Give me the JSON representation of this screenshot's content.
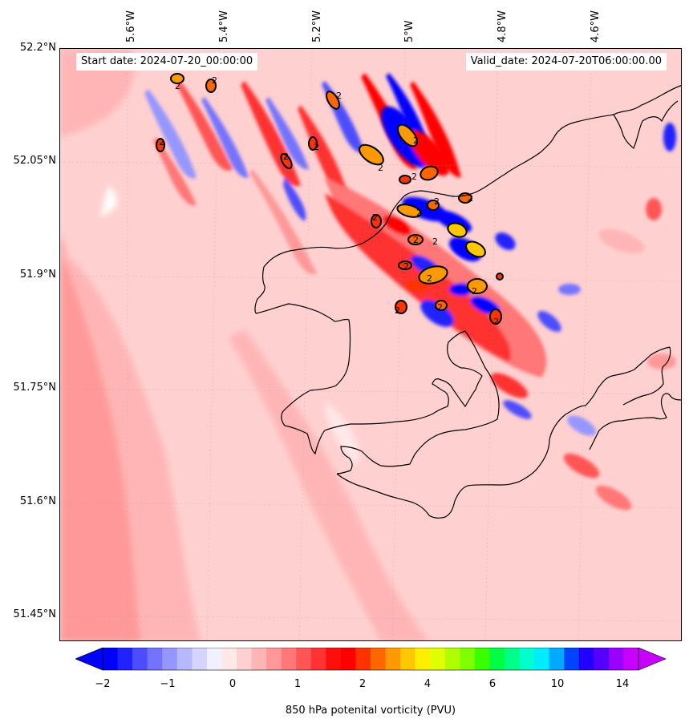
{
  "header": {
    "start_date": "Start date: 2024-07-20_00:00:00",
    "valid_date": "Valid_date: 2024-07-20T06:00:00.00"
  },
  "axes": {
    "lat_ticks": [
      "52.2°N",
      "52.05°N",
      "51.9°N",
      "51.75°N",
      "51.6°N",
      "51.45°N"
    ],
    "lon_ticks": [
      "5.6°W",
      "5.4°W",
      "5.2°W",
      "5°W",
      "4.8°W",
      "4.6°W"
    ]
  },
  "colorbar": {
    "label": "850 hPa potenital vorticity (PVU)",
    "tick_labels": [
      "−2",
      "−1",
      "0",
      "1",
      "2",
      "4",
      "6",
      "10",
      "14"
    ],
    "colors": [
      "#0000ff",
      "#2222ff",
      "#4d4dff",
      "#7373ff",
      "#9696ff",
      "#b8b8ff",
      "#d4d4ff",
      "#f0f0ff",
      "#ffe8e8",
      "#ffd0d0",
      "#ffb5b5",
      "#ff9999",
      "#ff7777",
      "#ff5555",
      "#ff3333",
      "#ff0e0e",
      "#ff0000",
      "#ff3300",
      "#ff6600",
      "#ff9900",
      "#ffc800",
      "#ffee00",
      "#e0ff00",
      "#b0ff00",
      "#7fff00",
      "#3aff00",
      "#00ff44",
      "#00ff88",
      "#00ffcc",
      "#00ecff",
      "#00aaff",
      "#0044ff",
      "#2200ff",
      "#5500ff",
      "#9900ff",
      "#c800ff"
    ]
  },
  "map": {
    "contour_label": "2",
    "background_color": "#ffd0d0"
  }
}
